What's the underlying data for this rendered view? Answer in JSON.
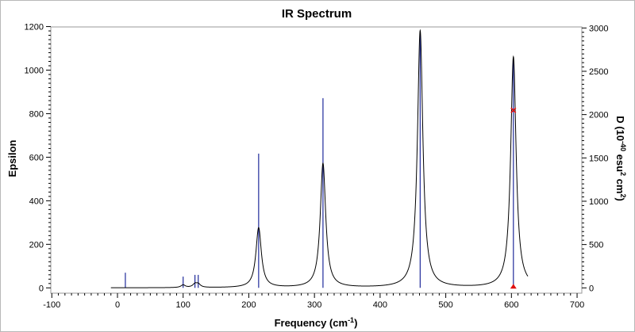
{
  "chart_data": {
    "type": "line",
    "title": "IR Spectrum",
    "xlabel": {
      "main": "Frequency (cm",
      "sup": "-1",
      "tail": ")"
    },
    "ylabel_left": "Epsilon",
    "ylabel_right": {
      "p1": "D (10",
      "s1": "-40",
      "p2": " esu",
      "s2": "2",
      "p3": " cm",
      "s3": "2",
      "p4": ")"
    },
    "xlim": [
      -100,
      700
    ],
    "ylim_left": [
      0,
      1200
    ],
    "ylim_right": [
      0,
      3000
    ],
    "x_ticks": [
      -100,
      0,
      100,
      200,
      300,
      400,
      500,
      600,
      700
    ],
    "x_tick_labels": [
      "-100",
      "0",
      "100",
      "200",
      "300",
      "400",
      "500",
      "600",
      "700"
    ],
    "y_left_ticks": [
      0,
      200,
      400,
      600,
      800,
      1000,
      1200
    ],
    "y_left_tick_labels": [
      "0",
      "200",
      "400",
      "600",
      "800",
      "1000",
      "1200"
    ],
    "y_right_ticks": [
      0,
      500,
      1000,
      1500,
      2000,
      2500,
      3000
    ],
    "y_right_tick_labels": [
      "0",
      "500",
      "1000",
      "1500",
      "2000",
      "2500",
      "3000"
    ],
    "grid": false,
    "spectrum_range": [
      -10,
      625
    ],
    "spectrum_peaks": [
      {
        "x": 100,
        "height": 12,
        "width": 8
      },
      {
        "x": 118,
        "height": 15,
        "width": 8
      },
      {
        "x": 123,
        "height": 15,
        "width": 8
      },
      {
        "x": 215,
        "height": 275,
        "width": 10
      },
      {
        "x": 313,
        "height": 570,
        "width": 10
      },
      {
        "x": 461,
        "height": 1180,
        "width": 10
      },
      {
        "x": 603,
        "height": 1060,
        "width": 10
      }
    ],
    "stick_series": [
      {
        "x": 12,
        "D": 175
      },
      {
        "x": 100,
        "D": 130
      },
      {
        "x": 118,
        "D": 150
      },
      {
        "x": 123,
        "D": 150
      },
      {
        "x": 215,
        "D": 1550
      },
      {
        "x": 313,
        "D": 2190
      },
      {
        "x": 461,
        "D": 2950
      },
      {
        "x": 603,
        "D": 2650
      }
    ],
    "markers": [
      {
        "x": 603,
        "D": 2050
      },
      {
        "x": 603,
        "D": 0
      }
    ],
    "colors": {
      "spectrum": "#000000",
      "sticks": "#1f2a9a",
      "marker": "#e01010",
      "frame": "#b8b8b8"
    }
  }
}
